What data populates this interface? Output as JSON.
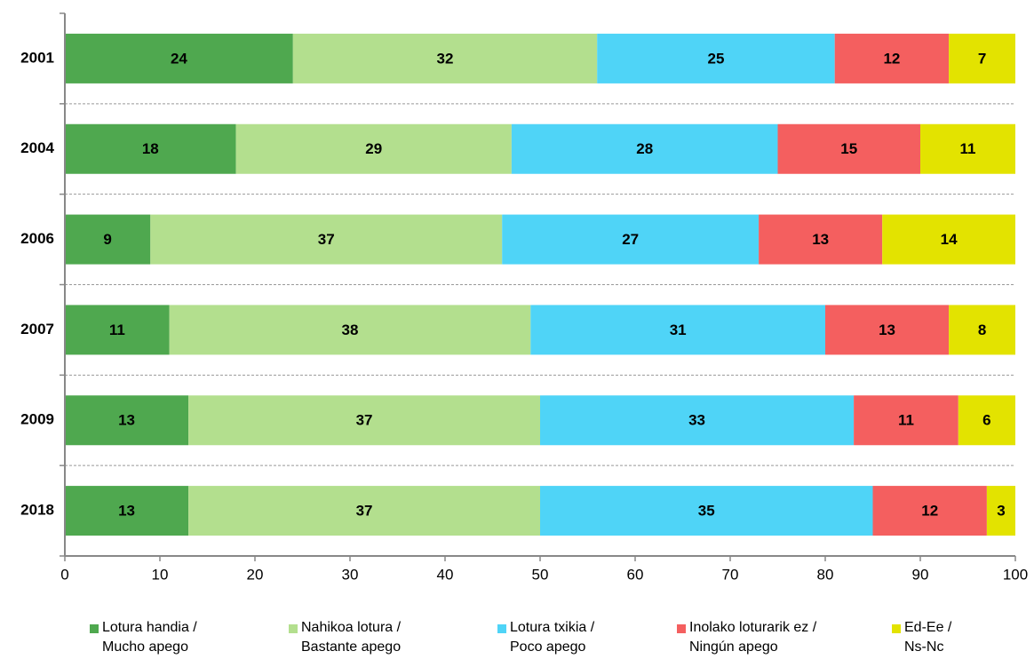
{
  "chart_data": {
    "type": "stacked-barh",
    "categories": [
      "2001",
      "2004",
      "2006",
      "2007",
      "2009",
      "2018"
    ],
    "series": [
      {
        "name": "Lotura handia /\nMucho apego",
        "color": "#4fa84f",
        "values": [
          24,
          18,
          9,
          11,
          13,
          13
        ]
      },
      {
        "name": "Nahikoa lotura /\nBastante apego",
        "color": "#b3df8e",
        "values": [
          32,
          29,
          37,
          38,
          37,
          37
        ]
      },
      {
        "name": "Lotura txikia /\nPoco apego",
        "color": "#4fd4f7",
        "values": [
          25,
          28,
          27,
          31,
          33,
          35
        ]
      },
      {
        "name": "Inolako loturarik ez /\nNingún apego",
        "color": "#f45f5f",
        "values": [
          12,
          15,
          13,
          13,
          11,
          12
        ]
      },
      {
        "name": "Ed-Ee /\nNs-Nc",
        "color": "#e3e300",
        "values": [
          7,
          11,
          14,
          8,
          6,
          3
        ]
      }
    ],
    "xlim": [
      0,
      100
    ],
    "xticks": [
      0,
      10,
      20,
      30,
      40,
      50,
      60,
      70,
      80,
      90,
      100
    ]
  }
}
